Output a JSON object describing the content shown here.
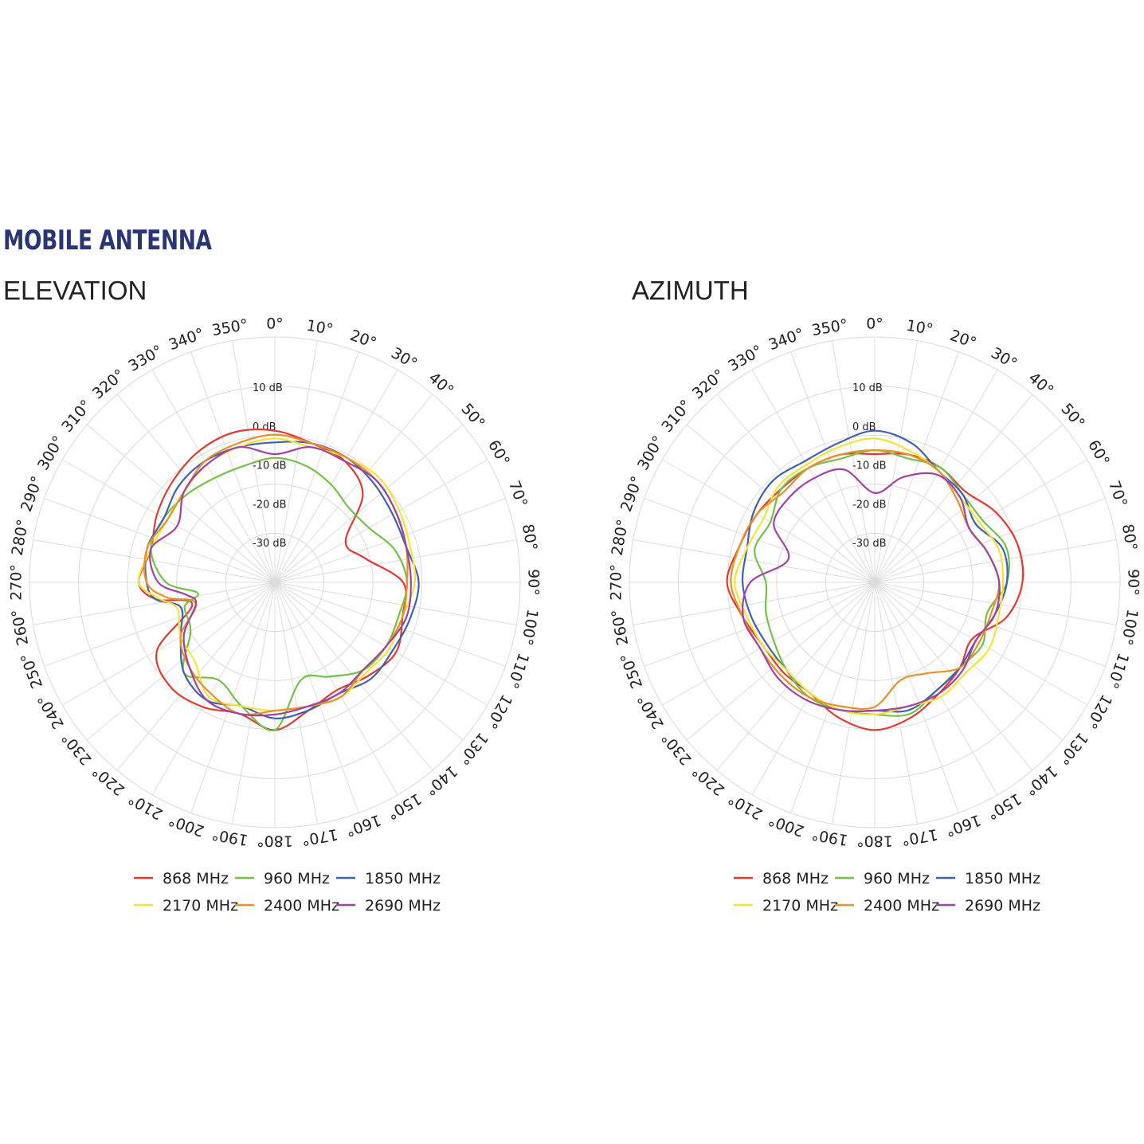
{
  "header": {
    "title": "MOBILE ANTENNA"
  },
  "colors": {
    "868 MHz": "#e03c31",
    "960 MHz": "#74c04a",
    "1850 MHz": "#3f63b0",
    "2170 MHz": "#f7e338",
    "2400 MHz": "#e8902a",
    "2690 MHz": "#a143a2"
  },
  "chart_data": [
    {
      "type": "polar-line",
      "title": "ELEVATION",
      "angle_unit": "deg",
      "angle_ticks": [
        "0°",
        "10°",
        "20°",
        "30°",
        "40°",
        "50°",
        "60°",
        "70°",
        "80°",
        "90°",
        "100°",
        "110°",
        "120°",
        "130°",
        "140°",
        "150°",
        "160°",
        "170°",
        "180°",
        "190°",
        "200°",
        "210°",
        "220°",
        "230°",
        "240°",
        "250°",
        "260°",
        "270°",
        "280°",
        "290°",
        "300°",
        "310°",
        "320°",
        "330°",
        "340°",
        "350°"
      ],
      "radial_ticks": [
        "10 dB",
        "0 dB",
        "-10 dB",
        "-20 dB",
        "-30 dB"
      ],
      "radial_values": [
        10,
        0,
        -10,
        -20,
        -30
      ],
      "rlim": [
        -40,
        10
      ],
      "angles": [
        0,
        15,
        30,
        45,
        60,
        75,
        90,
        105,
        120,
        135,
        150,
        165,
        180,
        195,
        210,
        225,
        240,
        255,
        262,
        270,
        285,
        300,
        315,
        330,
        345
      ],
      "legend": [
        "868 MHz",
        "960 MHz",
        "1850 MHz",
        "2170 MHz",
        "2400 MHz",
        "2690 MHz"
      ],
      "series": [
        {
          "name": "868 MHz",
          "values": [
            -1,
            -3,
            -4,
            -8,
            -19,
            -16,
            -7,
            -6,
            -4,
            -6,
            -8,
            -6,
            -2,
            -5,
            -3,
            -2,
            -5,
            -18,
            -9,
            -5,
            -7,
            -5,
            -3,
            -1,
            0
          ]
        },
        {
          "name": "960 MHz",
          "values": [
            -8,
            -9,
            -11,
            -13,
            -12,
            -8,
            -6,
            -7,
            -7,
            -8,
            -12,
            -14,
            -2,
            -7,
            -11,
            -7,
            -15,
            -16,
            -20,
            -12,
            -7,
            -7,
            -8,
            -9,
            -9
          ]
        },
        {
          "name": "1850 MHz",
          "values": [
            -4,
            -3,
            -3,
            -4,
            -5,
            -5,
            -3,
            -4,
            -5,
            -5,
            -7,
            -6,
            -5,
            -7,
            -5,
            -7,
            -12,
            -15,
            -9,
            -7,
            -6,
            -7,
            -5,
            -4,
            -4
          ]
        },
        {
          "name": "2170 MHz",
          "values": [
            -3,
            -4,
            -3,
            -2,
            -3,
            -4,
            -4,
            -6,
            -6,
            -7,
            -6,
            -7,
            -7,
            -7,
            -6,
            -11,
            -12,
            -14,
            -10,
            -5,
            -7,
            -8,
            -7,
            -5,
            -4
          ]
        },
        {
          "name": "2400 MHz",
          "values": [
            -2,
            -3,
            -3,
            -3,
            -4,
            -5,
            -6,
            -6,
            -7,
            -8,
            -6,
            -7,
            -7,
            -5,
            -7,
            -9,
            -12,
            -19,
            -12,
            -7,
            -6,
            -8,
            -7,
            -4,
            -3
          ]
        },
        {
          "name": "2690 MHz",
          "values": [
            -7,
            -4,
            -4,
            -3,
            -4,
            -5,
            -5,
            -5,
            -7,
            -8,
            -7,
            -7,
            -6,
            -5,
            -5,
            -9,
            -13,
            -19,
            -17,
            -10,
            -7,
            -11,
            -7,
            -5,
            -4
          ]
        }
      ]
    },
    {
      "type": "polar-line",
      "title": "AZIMUTH",
      "angle_unit": "deg",
      "angle_ticks": [
        "0°",
        "10°",
        "20°",
        "30°",
        "40°",
        "50°",
        "60°",
        "70°",
        "80°",
        "90°",
        "100°",
        "110°",
        "120°",
        "130°",
        "140°",
        "150°",
        "160°",
        "170°",
        "180°",
        "190°",
        "200°",
        "210°",
        "220°",
        "230°",
        "240°",
        "250°",
        "260°",
        "270°",
        "280°",
        "290°",
        "300°",
        "310°",
        "320°",
        "330°",
        "340°",
        "350°"
      ],
      "radial_ticks": [
        "10 dB",
        "0 dB",
        "-10 dB",
        "-20 dB",
        "-30 dB"
      ],
      "radial_values": [
        10,
        0,
        -10,
        -20,
        -30
      ],
      "rlim": [
        -40,
        10
      ],
      "angles": [
        0,
        15,
        30,
        45,
        60,
        75,
        90,
        105,
        120,
        135,
        150,
        165,
        180,
        195,
        210,
        225,
        240,
        255,
        270,
        285,
        300,
        315,
        330,
        345
      ],
      "legend": [
        "868 MHz",
        "960 MHz",
        "1850 MHz",
        "2170 MHz",
        "2400 MHz",
        "2690 MHz"
      ],
      "series": [
        {
          "name": "868 MHz",
          "values": [
            -7,
            -6,
            -6,
            -7,
            -4,
            -2,
            -2,
            -5,
            -11,
            -9,
            -7,
            -4,
            -2,
            -4,
            -7,
            -7,
            -7,
            -5,
            -2,
            -4,
            -5,
            -6,
            -6,
            -6
          ]
        },
        {
          "name": "960 MHz",
          "values": [
            -6,
            -7,
            -6,
            -8,
            -8,
            -5,
            -6,
            -10,
            -8,
            -9,
            -8,
            -5,
            -6,
            -6,
            -6,
            -8,
            -10,
            -11,
            -12,
            -8,
            -9,
            -6,
            -6,
            -7
          ]
        },
        {
          "name": "1850 MHz",
          "values": [
            -1,
            -3,
            -7,
            -8,
            -10,
            -6,
            -6,
            -8,
            -10,
            -9,
            -8,
            -6,
            -7,
            -6,
            -7,
            -8,
            -8,
            -7,
            -6,
            -6,
            -4,
            -3,
            -4,
            -3
          ]
        },
        {
          "name": "2170 MHz",
          "values": [
            -3,
            -5,
            -7,
            -9,
            -9,
            -7,
            -7,
            -7,
            -6,
            -7,
            -6,
            -7,
            -6,
            -6,
            -7,
            -8,
            -7,
            -6,
            -4,
            -6,
            -7,
            -5,
            -5,
            -4
          ]
        },
        {
          "name": "2400 MHz",
          "values": [
            -6,
            -6,
            -7,
            -10,
            -12,
            -10,
            -8,
            -9,
            -9,
            -9,
            -13,
            -14,
            -8,
            -7,
            -6,
            -6,
            -6,
            -5,
            -3,
            -4,
            -5,
            -7,
            -6,
            -6
          ]
        },
        {
          "name": "2690 MHz",
          "values": [
            -17,
            -12,
            -8,
            -9,
            -12,
            -10,
            -8,
            -8,
            -10,
            -8,
            -7,
            -7,
            -7,
            -6,
            -5,
            -5,
            -6,
            -5,
            -8,
            -17,
            -10,
            -9,
            -9,
            -10
          ]
        }
      ]
    }
  ]
}
